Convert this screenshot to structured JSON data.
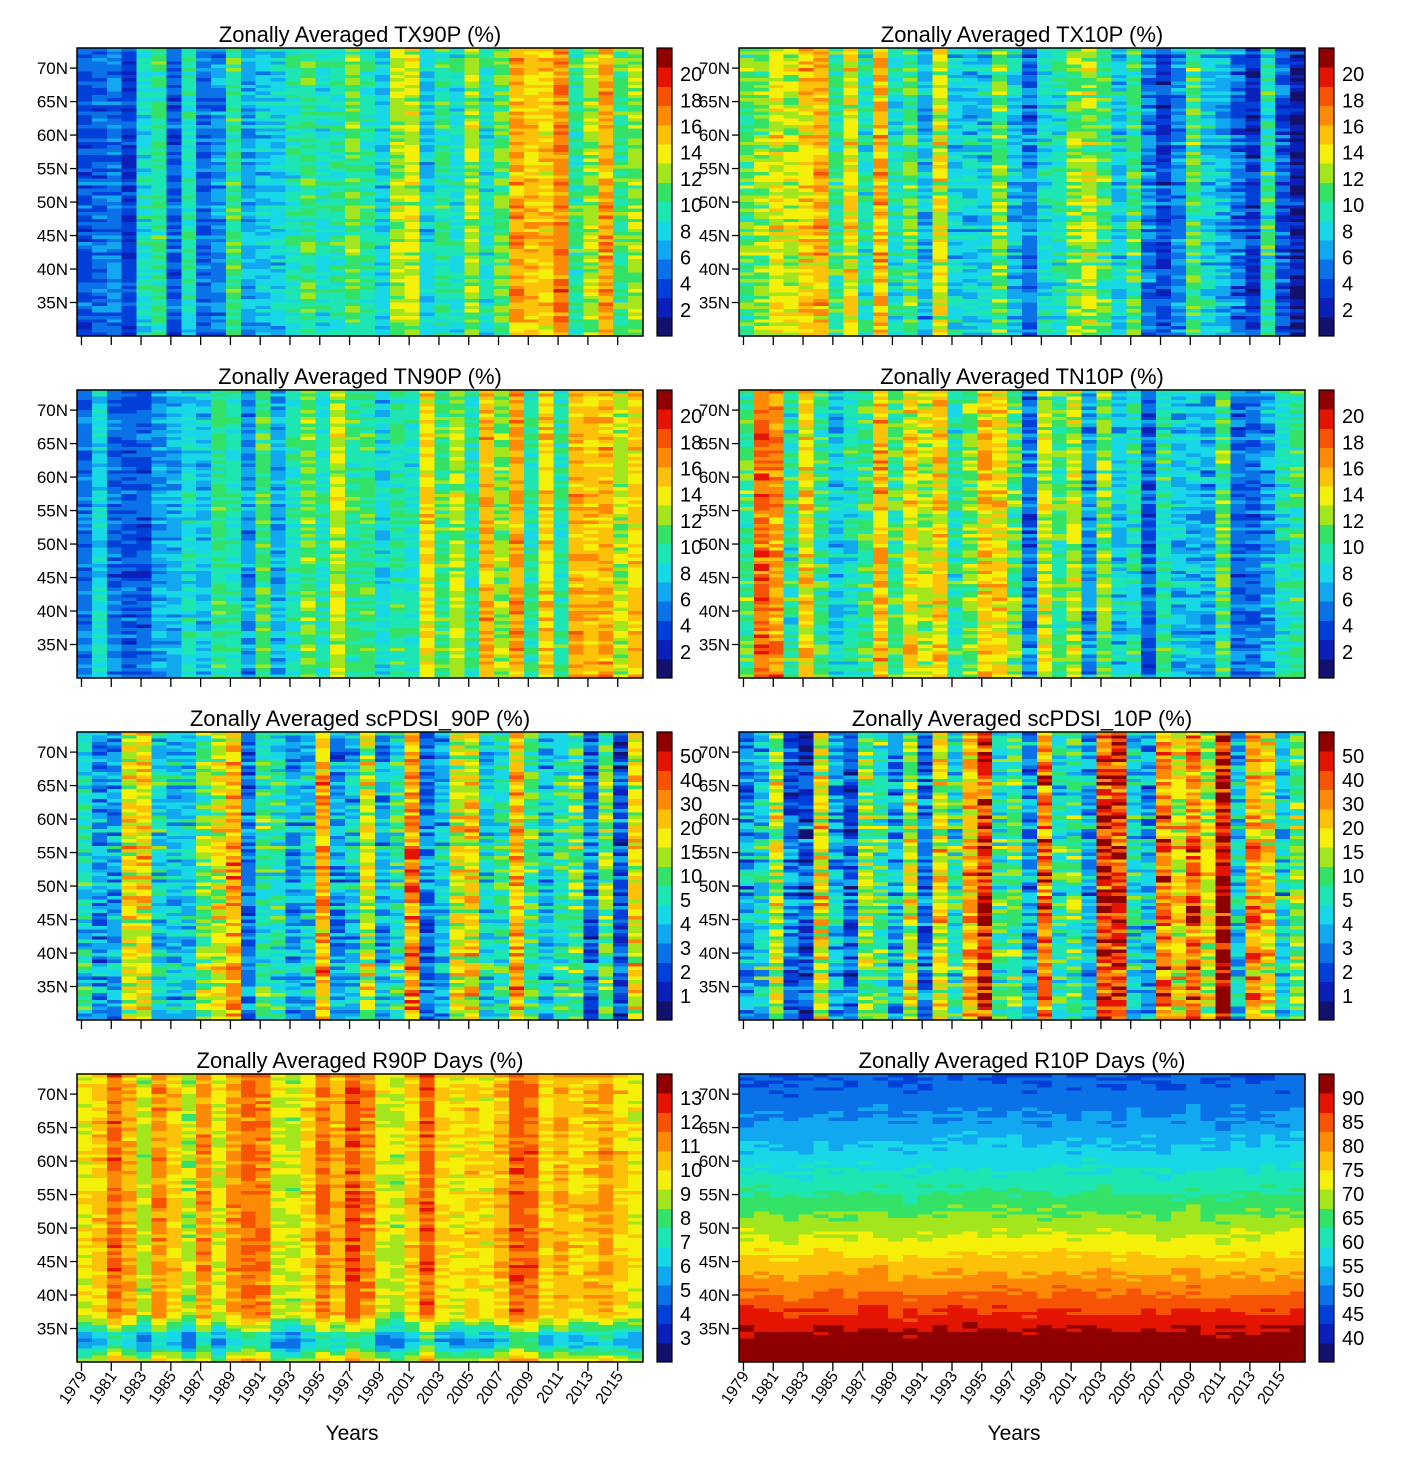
{
  "figure": {
    "x_axis_title": "Years"
  },
  "colors": {
    "colormap": [
      "#12126e",
      "#0a20b8",
      "#0040d8",
      "#0a72e6",
      "#12a8f0",
      "#18d8e8",
      "#1ee6b2",
      "#34e268",
      "#a4e61e",
      "#f4f00a",
      "#fcc20a",
      "#fc8a06",
      "#f65404",
      "#e41402",
      "#8e0000"
    ],
    "frame": "#000000"
  },
  "chart_data": [
    {
      "type": "heatmap",
      "title": "Zonally Averaged TX90P (%)",
      "x_ticks": [
        "1979",
        "1981",
        "1983",
        "1985",
        "1987",
        "1989",
        "1991",
        "1993",
        "1995",
        "1997",
        "1999",
        "2001",
        "2003",
        "2005",
        "2007",
        "2009",
        "2011",
        "2013",
        "2015"
      ],
      "x_tick_labels_shown": false,
      "y_ticks": [
        "70N",
        "65N",
        "60N",
        "55N",
        "50N",
        "45N",
        "40N",
        "35N"
      ],
      "y_range_deg": [
        30,
        73
      ],
      "x_range_years": [
        1979,
        2016
      ],
      "colorbar_labels": [
        "2",
        "4",
        "6",
        "8",
        "10",
        "12",
        "14",
        "16",
        "18",
        "20"
      ],
      "trend_note": "",
      "seed": 11,
      "base": 0.28,
      "trend": 0.38,
      "lat_grad": 0.0,
      "noise": 0.16,
      "band": 0.0
    },
    {
      "type": "heatmap",
      "title": "Zonally Averaged TX10P (%)",
      "x_ticks": [
        "1979",
        "1981",
        "1983",
        "1985",
        "1987",
        "1989",
        "1991",
        "1993",
        "1995",
        "1997",
        "1999",
        "2001",
        "2003",
        "2005",
        "2007",
        "2009",
        "2011",
        "2013",
        "2015"
      ],
      "x_tick_labels_shown": false,
      "y_ticks": [
        "70N",
        "65N",
        "60N",
        "55N",
        "50N",
        "45N",
        "40N",
        "35N"
      ],
      "y_range_deg": [
        30,
        73
      ],
      "x_range_years": [
        1979,
        2016
      ],
      "colorbar_labels": [
        "2",
        "4",
        "6",
        "8",
        "10",
        "12",
        "14",
        "16",
        "18",
        "20"
      ],
      "seed": 23,
      "base": 0.62,
      "trend": -0.35,
      "lat_grad": 0.0,
      "noise": 0.2,
      "band": 0.0
    },
    {
      "type": "heatmap",
      "title": "Zonally Averaged TN90P (%)",
      "x_ticks": [
        "1979",
        "1981",
        "1983",
        "1985",
        "1987",
        "1989",
        "1991",
        "1993",
        "1995",
        "1997",
        "1999",
        "2001",
        "2003",
        "2005",
        "2007",
        "2009",
        "2011",
        "2013",
        "2015"
      ],
      "x_tick_labels_shown": false,
      "y_ticks": [
        "70N",
        "65N",
        "60N",
        "55N",
        "50N",
        "45N",
        "40N",
        "35N"
      ],
      "y_range_deg": [
        30,
        73
      ],
      "x_range_years": [
        1979,
        2016
      ],
      "colorbar_labels": [
        "2",
        "4",
        "6",
        "8",
        "10",
        "12",
        "14",
        "16",
        "18",
        "20"
      ],
      "seed": 37,
      "base": 0.32,
      "trend": 0.33,
      "lat_grad": 0.0,
      "noise": 0.15,
      "band": 0.0
    },
    {
      "type": "heatmap",
      "title": "Zonally Averaged TN10P (%)",
      "x_ticks": [
        "1979",
        "1981",
        "1983",
        "1985",
        "1987",
        "1989",
        "1991",
        "1993",
        "1995",
        "1997",
        "1999",
        "2001",
        "2003",
        "2005",
        "2007",
        "2009",
        "2011",
        "2013",
        "2015"
      ],
      "x_tick_labels_shown": false,
      "y_ticks": [
        "70N",
        "65N",
        "60N",
        "55N",
        "50N",
        "45N",
        "40N",
        "35N"
      ],
      "y_range_deg": [
        30,
        73
      ],
      "x_range_years": [
        1979,
        2016
      ],
      "colorbar_labels": [
        "2",
        "4",
        "6",
        "8",
        "10",
        "12",
        "14",
        "16",
        "18",
        "20"
      ],
      "seed": 41,
      "base": 0.6,
      "trend": -0.3,
      "lat_grad": 0.0,
      "noise": 0.2,
      "band": 0.0
    },
    {
      "type": "heatmap",
      "title": "Zonally Averaged scPDSI_90P (%)",
      "x_ticks": [
        "1979",
        "1981",
        "1983",
        "1985",
        "1987",
        "1989",
        "1991",
        "1993",
        "1995",
        "1997",
        "1999",
        "2001",
        "2003",
        "2005",
        "2007",
        "2009",
        "2011",
        "2013",
        "2015"
      ],
      "x_tick_labels_shown": false,
      "y_ticks": [
        "70N",
        "65N",
        "60N",
        "55N",
        "50N",
        "45N",
        "40N",
        "35N"
      ],
      "y_range_deg": [
        30,
        73
      ],
      "x_range_years": [
        1979,
        2016
      ],
      "colorbar_labels": [
        "1",
        "2",
        "3",
        "4",
        "5",
        "10",
        "15",
        "20",
        "30",
        "40",
        "50"
      ],
      "seed": 53,
      "base": 0.55,
      "trend": -0.05,
      "lat_grad": 0.0,
      "noise": 0.28,
      "band": 0.0
    },
    {
      "type": "heatmap",
      "title": "Zonally Averaged scPDSI_10P (%)",
      "x_ticks": [
        "1979",
        "1981",
        "1983",
        "1985",
        "1987",
        "1989",
        "1991",
        "1993",
        "1995",
        "1997",
        "1999",
        "2001",
        "2003",
        "2005",
        "2007",
        "2009",
        "2011",
        "2013",
        "2015"
      ],
      "x_tick_labels_shown": false,
      "y_ticks": [
        "70N",
        "65N",
        "60N",
        "55N",
        "50N",
        "45N",
        "40N",
        "35N"
      ],
      "y_range_deg": [
        30,
        73
      ],
      "x_range_years": [
        1979,
        2016
      ],
      "colorbar_labels": [
        "1",
        "2",
        "3",
        "4",
        "5",
        "10",
        "15",
        "20",
        "30",
        "40",
        "50"
      ],
      "seed": 67,
      "base": 0.45,
      "trend": 0.25,
      "lat_grad": 0.0,
      "noise": 0.3,
      "band": 0.0
    },
    {
      "type": "heatmap",
      "title": "Zonally Averaged R90P  Days (%)",
      "x_ticks": [
        "1979",
        "1981",
        "1983",
        "1985",
        "1987",
        "1989",
        "1991",
        "1993",
        "1995",
        "1997",
        "1999",
        "2001",
        "2003",
        "2005",
        "2007",
        "2009",
        "2011",
        "2013",
        "2015"
      ],
      "x_tick_labels_shown": true,
      "y_ticks": [
        "70N",
        "65N",
        "60N",
        "55N",
        "50N",
        "45N",
        "40N",
        "35N"
      ],
      "y_range_deg": [
        30,
        73
      ],
      "x_range_years": [
        1979,
        2016
      ],
      "colorbar_labels": [
        "3",
        "4",
        "5",
        "6",
        "7",
        "8",
        "9",
        "10",
        "11",
        "12",
        "13"
      ],
      "seed": 79,
      "base": 0.7,
      "trend": 0.04,
      "lat_grad": 0.0,
      "noise": 0.12,
      "band": -0.35
    },
    {
      "type": "heatmap",
      "title": "Zonally Averaged R10P  Days (%)",
      "x_ticks": [
        "1979",
        "1981",
        "1983",
        "1985",
        "1987",
        "1989",
        "1991",
        "1993",
        "1995",
        "1997",
        "1999",
        "2001",
        "2003",
        "2005",
        "2007",
        "2009",
        "2011",
        "2013",
        "2015"
      ],
      "x_tick_labels_shown": true,
      "y_ticks": [
        "70N",
        "65N",
        "60N",
        "55N",
        "50N",
        "45N",
        "40N",
        "35N"
      ],
      "y_range_deg": [
        30,
        73
      ],
      "x_range_years": [
        1979,
        2016
      ],
      "colorbar_labels": [
        "40",
        "45",
        "50",
        "55",
        "60",
        "65",
        "70",
        "75",
        "80",
        "85",
        "90"
      ],
      "seed": 91,
      "base": 0.2,
      "trend": 0.0,
      "lat_grad": 0.85,
      "noise": 0.05,
      "band": 0.0
    }
  ]
}
